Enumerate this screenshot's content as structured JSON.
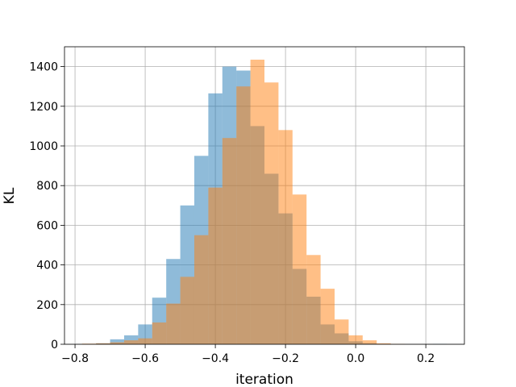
{
  "chart_data": {
    "type": "histogram",
    "title": "",
    "xlabel": "iteration",
    "ylabel": "KL",
    "xlim": [
      -0.83,
      0.31
    ],
    "ylim": [
      0,
      1500
    ],
    "xticks": [
      -0.8,
      -0.6,
      -0.4,
      -0.2,
      0.0,
      0.2
    ],
    "xtick_labels": [
      "−0.8",
      "−0.6",
      "−0.4",
      "−0.2",
      "0.0",
      "0.2"
    ],
    "yticks": [
      0,
      200,
      400,
      600,
      800,
      1000,
      1200,
      1400
    ],
    "ytick_labels": [
      "0",
      "200",
      "400",
      "600",
      "800",
      "1000",
      "1200",
      "1400"
    ],
    "grid": true,
    "legend": "none",
    "series": [
      {
        "color": "#1f77b4",
        "alpha": 0.5,
        "bin_edges": [
          -0.78,
          -0.74,
          -0.7,
          -0.66,
          -0.62,
          -0.58,
          -0.54,
          -0.5,
          -0.46,
          -0.42,
          -0.38,
          -0.34,
          -0.3,
          -0.26,
          -0.22,
          -0.18,
          -0.14,
          -0.1,
          -0.06,
          -0.02,
          0.02,
          0.06,
          0.1,
          0.14,
          0.18,
          0.22,
          0.26
        ],
        "counts": [
          2,
          5,
          25,
          45,
          100,
          235,
          430,
          700,
          950,
          1265,
          1400,
          1380,
          1100,
          860,
          660,
          380,
          240,
          100,
          55,
          15,
          5,
          2,
          0,
          0,
          0,
          2
        ]
      },
      {
        "color": "#ff7f0e",
        "alpha": 0.5,
        "bin_edges": [
          -0.78,
          -0.74,
          -0.7,
          -0.66,
          -0.62,
          -0.58,
          -0.54,
          -0.5,
          -0.46,
          -0.42,
          -0.38,
          -0.34,
          -0.3,
          -0.26,
          -0.22,
          -0.18,
          -0.14,
          -0.1,
          -0.06,
          -0.02,
          0.02,
          0.06,
          0.1,
          0.14,
          0.18,
          0.22,
          0.26
        ],
        "counts": [
          3,
          5,
          10,
          20,
          30,
          110,
          205,
          340,
          550,
          790,
          1040,
          1300,
          1435,
          1320,
          1080,
          755,
          450,
          280,
          125,
          45,
          20,
          5,
          2,
          0,
          0,
          0
        ]
      }
    ]
  }
}
